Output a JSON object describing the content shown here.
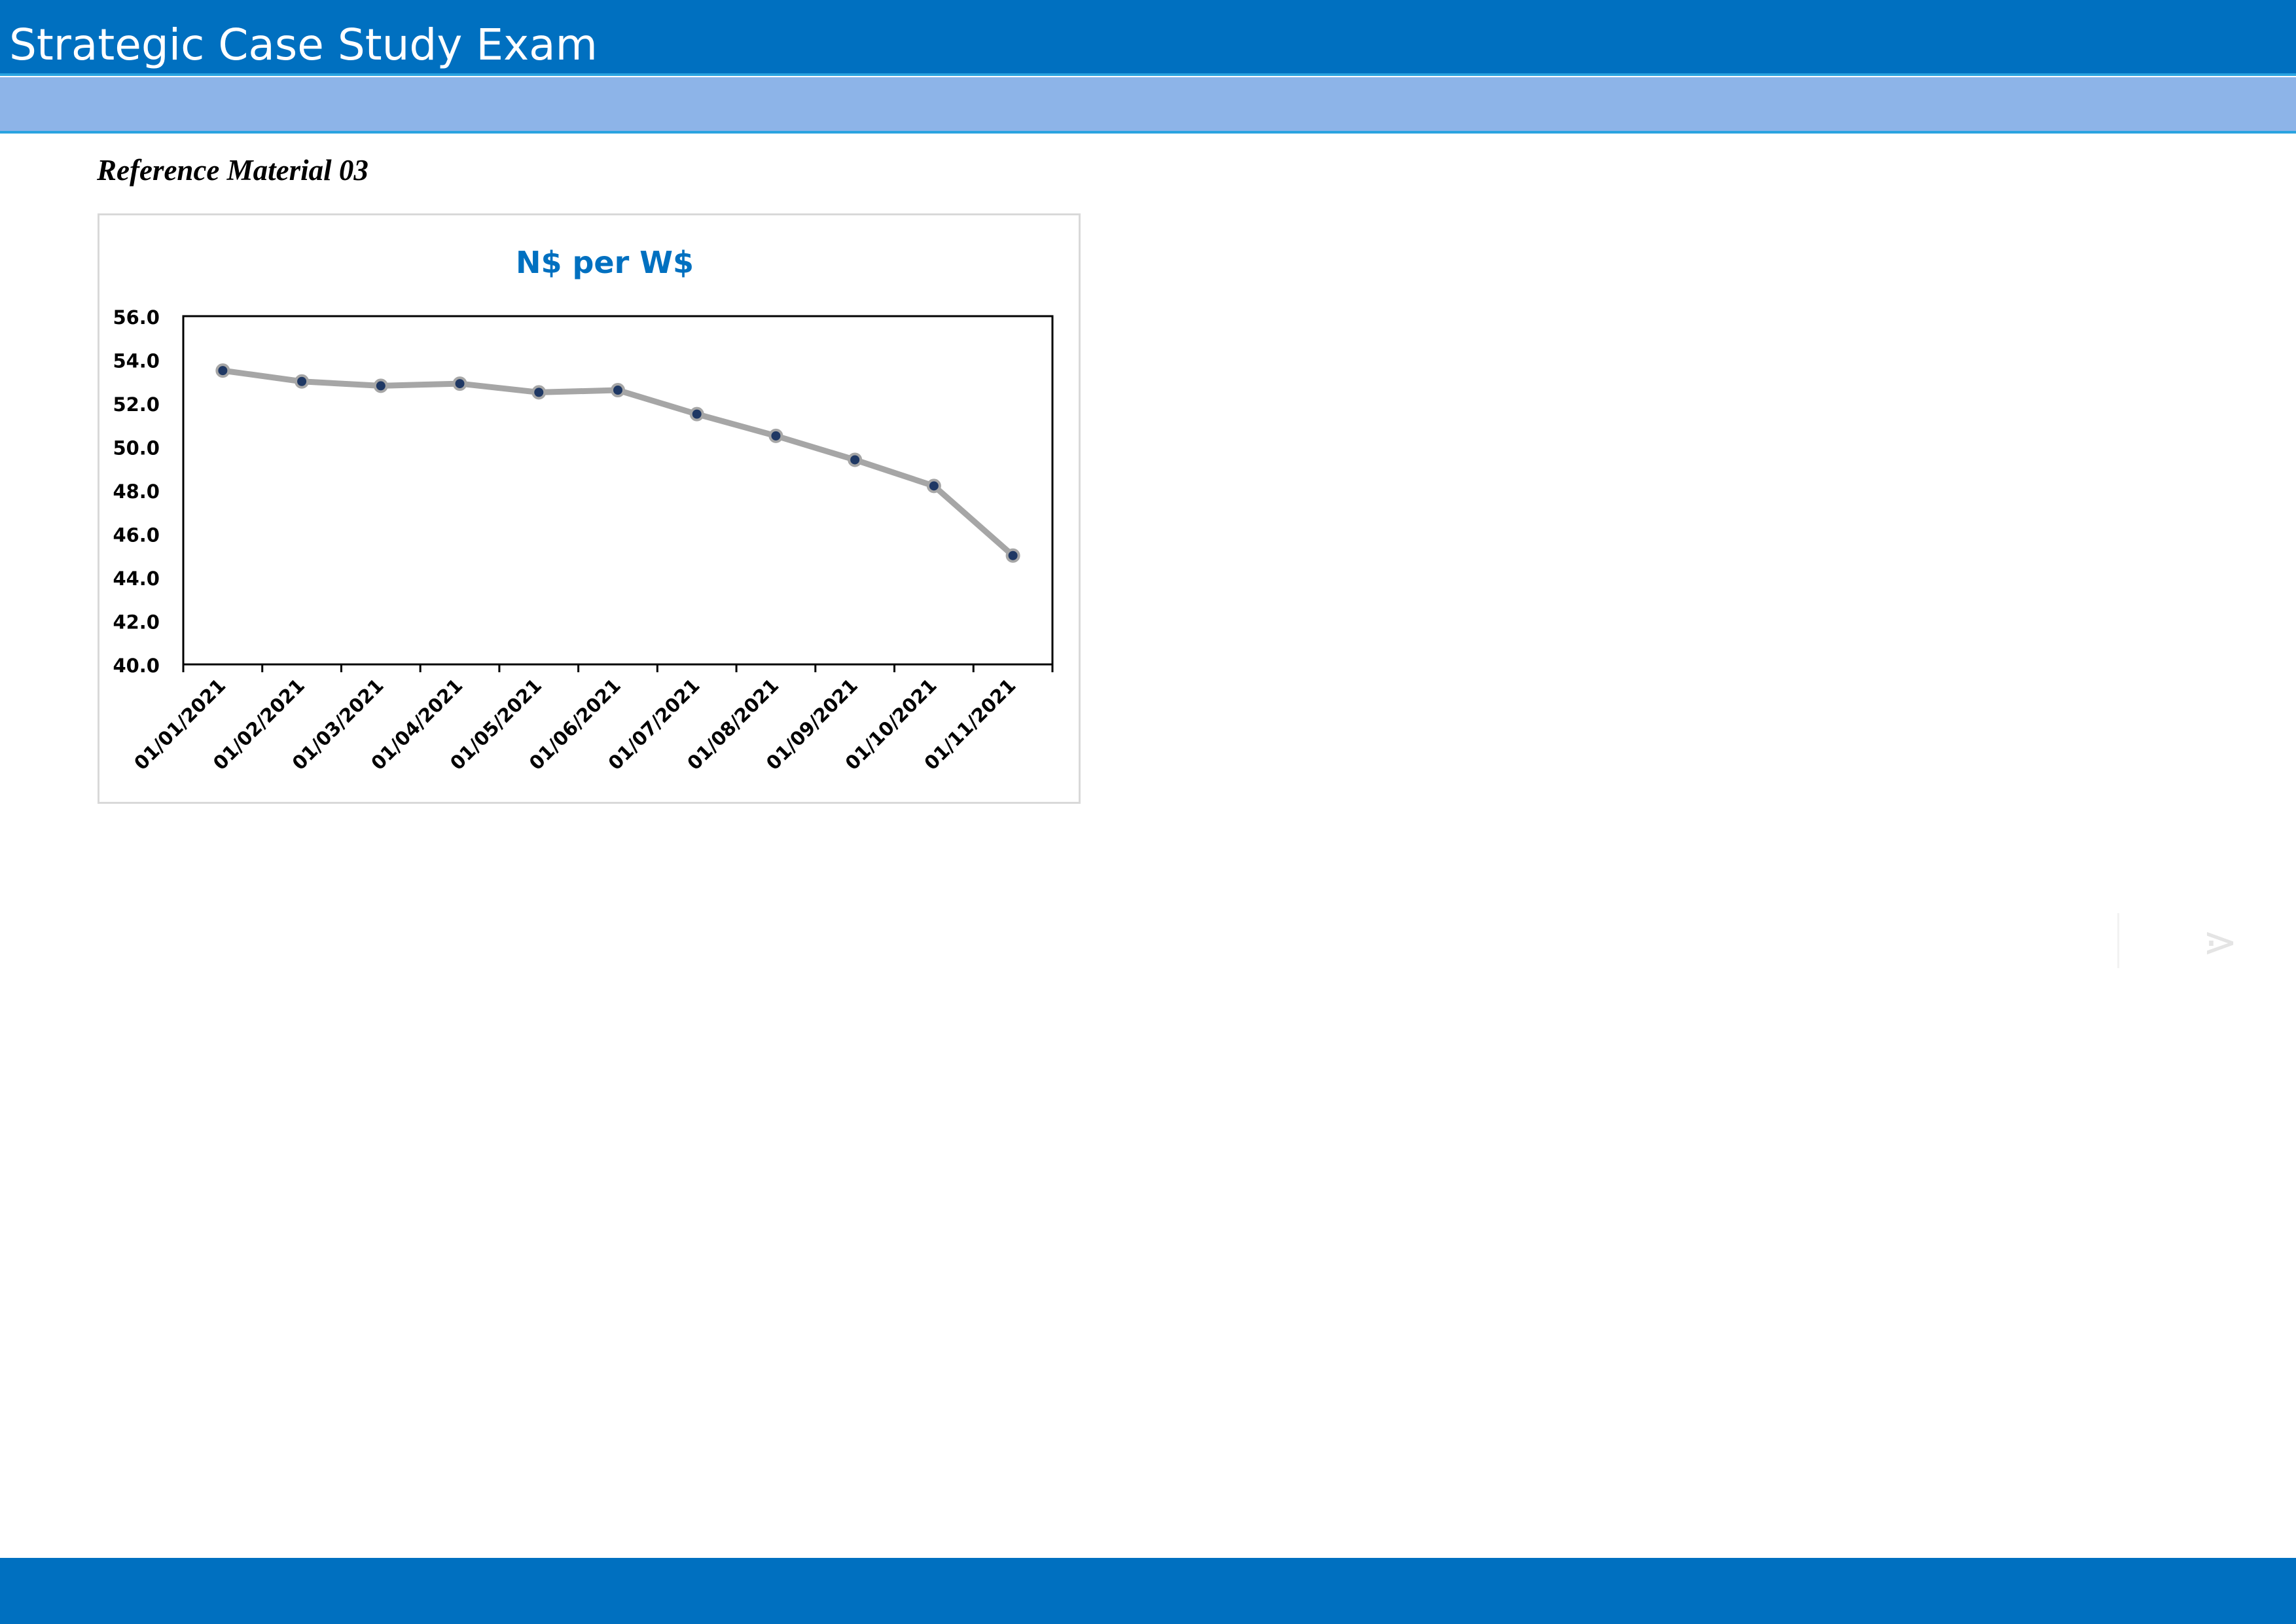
{
  "header": {
    "title": "Strategic Case Study Exam"
  },
  "reference": {
    "label": "Reference Material 03"
  },
  "navigation": {
    "next_icon": "chevron-right-icon",
    "next_glyph": "⋗"
  },
  "colors": {
    "brand_blue": "#0070c0",
    "sub_bar": "#8db4e8",
    "title_blue": "#0070c0",
    "line": "#a6a6a6",
    "marker": "#1f3864"
  },
  "chart_data": {
    "type": "line",
    "title": "N$ per W$",
    "xlabel": "",
    "ylabel": "",
    "categories": [
      "01/01/2021",
      "01/02/2021",
      "01/03/2021",
      "01/04/2021",
      "01/05/2021",
      "01/06/2021",
      "01/07/2021",
      "01/08/2021",
      "01/09/2021",
      "01/10/2021",
      "01/11/2021"
    ],
    "series": [
      {
        "values": [
          53.5,
          53.0,
          52.8,
          52.9,
          52.5,
          52.6,
          51.5,
          50.5,
          49.4,
          48.2,
          45.0
        ]
      }
    ],
    "ylim": [
      40,
      56
    ],
    "yticks": [
      "40.0",
      "42.0",
      "44.0",
      "46.0",
      "48.0",
      "50.0",
      "52.0",
      "54.0",
      "56.0"
    ],
    "grid": false,
    "legend": "none"
  }
}
